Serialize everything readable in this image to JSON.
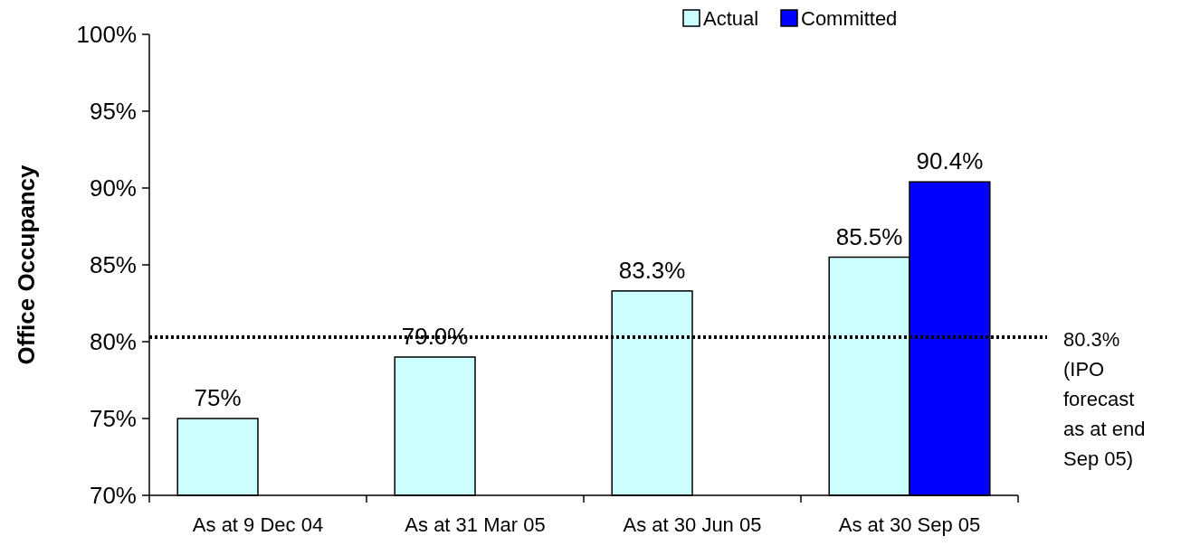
{
  "chart_data": {
    "type": "bar",
    "ylabel": "Office Occupancy",
    "categories": [
      "As at 9 Dec 04",
      "As at 31 Mar 05",
      "As at 30 Jun 05",
      "As at 30 Sep 05"
    ],
    "series": [
      {
        "name": "Actual",
        "color": "#ccffff",
        "values": [
          75,
          79.0,
          83.3,
          85.5
        ],
        "value_labels": [
          "75%",
          "79.0%",
          "83.3%",
          "85.5%"
        ]
      },
      {
        "name": "Committed",
        "color": "#0000ff",
        "values": [
          null,
          null,
          null,
          90.4
        ],
        "value_labels": [
          null,
          null,
          null,
          "90.4%"
        ]
      }
    ],
    "ylim": [
      70,
      100
    ],
    "yticks": [
      {
        "value": 70,
        "label": "70%"
      },
      {
        "value": 75,
        "label": "75%"
      },
      {
        "value": 80,
        "label": "80%"
      },
      {
        "value": 85,
        "label": "85%"
      },
      {
        "value": 90,
        "label": "90%"
      },
      {
        "value": 95,
        "label": "95%"
      },
      {
        "value": 100,
        "label": "100%"
      }
    ],
    "ref_lines": [
      {
        "axis": "y",
        "value": 80.3,
        "label": "80.3% (IPO forecast as at end Sep 05)",
        "color": "#000000",
        "line_style": "dotted"
      }
    ],
    "legend": "top right",
    "grid": false
  }
}
